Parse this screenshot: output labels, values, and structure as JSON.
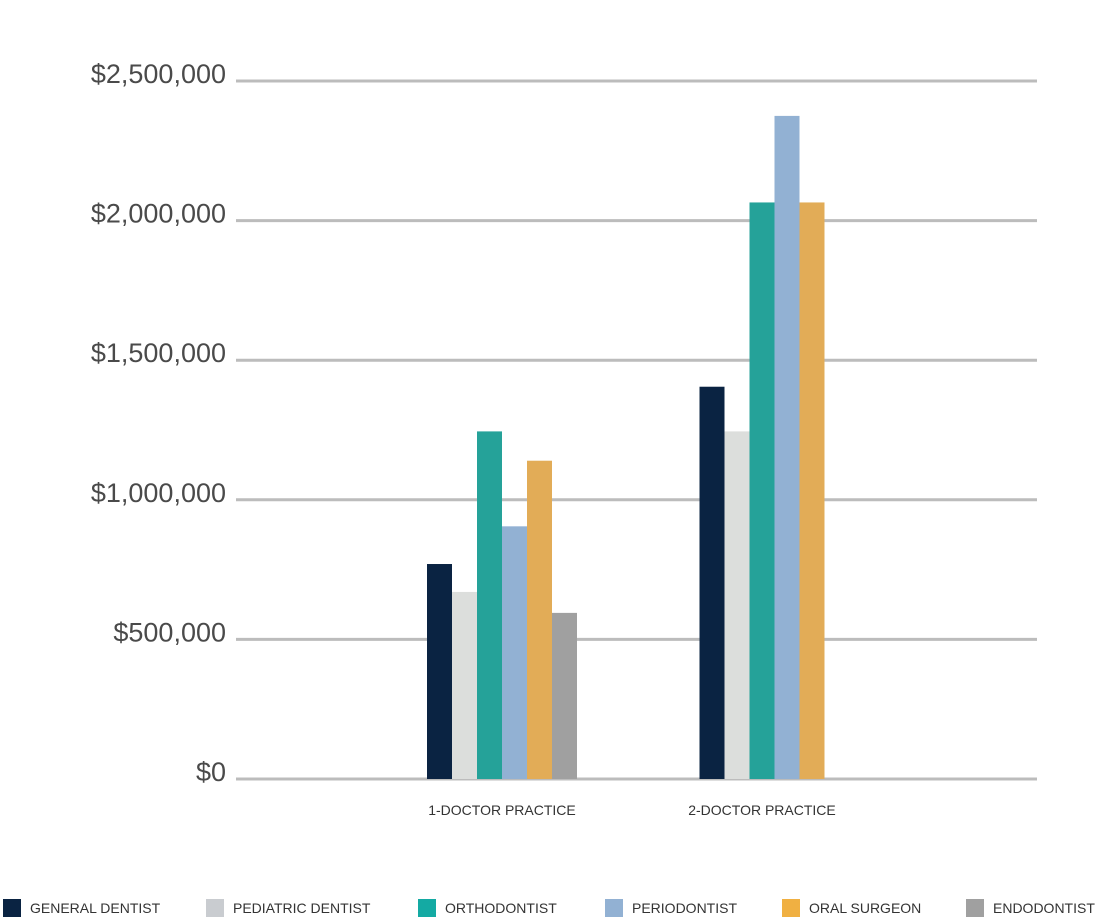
{
  "chart_data": {
    "type": "bar",
    "title": "",
    "xlabel": "",
    "ylabel": "",
    "categories": [
      "1-DOCTOR PRACTICE",
      "2-DOCTOR PRACTICE"
    ],
    "ylim": [
      0,
      2500000
    ],
    "y_ticks": [
      {
        "value": 0,
        "label": "$0"
      },
      {
        "value": 500000,
        "label": "$500,000"
      },
      {
        "value": 1000000,
        "label": "$1,000,000"
      },
      {
        "value": 1500000,
        "label": "$1,500,000"
      },
      {
        "value": 2000000,
        "label": "$2,000,000"
      },
      {
        "value": 2500000,
        "label": "$2,500,000"
      }
    ],
    "grid": true,
    "legend_position": "bottom",
    "series": [
      {
        "name": "GENERAL DENTIST",
        "color": "#0a2342",
        "values": [
          770000,
          1405000
        ]
      },
      {
        "name": "PEDIATRIC DENTIST",
        "color": "#dcdedc",
        "values": [
          670000,
          1245000
        ]
      },
      {
        "name": "ORTHODONTIST",
        "color": "#25a299",
        "values": [
          1245000,
          2065000
        ]
      },
      {
        "name": "PERIODONTIST",
        "color": "#92b1d3",
        "values": [
          905000,
          2375000
        ]
      },
      {
        "name": "ORAL SURGEON",
        "color": "#e2ac57",
        "values": [
          1140000,
          2065000
        ]
      },
      {
        "name": "ENDODONTIST",
        "color": "#a0a0a0",
        "values": [
          595000,
          null
        ]
      }
    ],
    "legend_swatch_colors": [
      "#0a2342",
      "#c9ccd0",
      "#14aaa3",
      "#92b1d3",
      "#f0b042",
      "#a0a0a0"
    ],
    "colors": {
      "grid": "#bcbcbc",
      "axis_text": "#4a4a4a",
      "category_text": "#333333",
      "legend_text": "#333333"
    }
  }
}
